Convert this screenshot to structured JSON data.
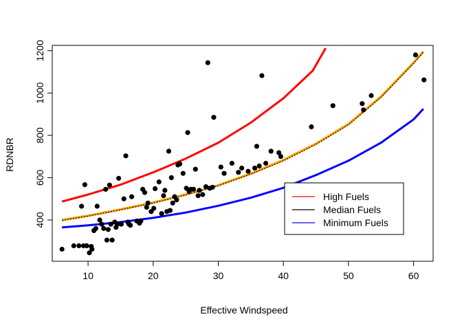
{
  "chart_data": {
    "type": "scatter",
    "xlabel": "Effective Windspeed",
    "ylabel": "RDNBR",
    "xlim": [
      4.5,
      63
    ],
    "ylim": [
      205,
      1225
    ],
    "x_ticks": [
      10,
      20,
      30,
      40,
      50,
      60
    ],
    "y_ticks": [
      400,
      600,
      800,
      1000,
      1200
    ],
    "grid": false,
    "legend_position": "bottom-right",
    "points": [
      [
        6,
        262
      ],
      [
        7.8,
        278
      ],
      [
        8.6,
        278
      ],
      [
        9,
        465
      ],
      [
        9.3,
        278
      ],
      [
        9.5,
        567
      ],
      [
        9.8,
        278
      ],
      [
        10.2,
        245
      ],
      [
        10.5,
        275
      ],
      [
        10.6,
        262
      ],
      [
        10.9,
        350
      ],
      [
        11.2,
        360
      ],
      [
        11.4,
        465
      ],
      [
        11.8,
        400
      ],
      [
        12.1,
        380
      ],
      [
        12.4,
        360
      ],
      [
        12.7,
        545
      ],
      [
        12.9,
        305
      ],
      [
        13.1,
        355
      ],
      [
        13.3,
        565
      ],
      [
        13.5,
        380
      ],
      [
        13.7,
        305
      ],
      [
        14.1,
        390
      ],
      [
        14.3,
        365
      ],
      [
        14.5,
        380
      ],
      [
        14.7,
        597
      ],
      [
        15.1,
        380
      ],
      [
        15.5,
        500
      ],
      [
        15.8,
        703
      ],
      [
        16.1,
        390
      ],
      [
        16.3,
        380
      ],
      [
        16.5,
        375
      ],
      [
        16.7,
        510
      ],
      [
        17.5,
        395
      ],
      [
        17.9,
        385
      ],
      [
        18.1,
        395
      ],
      [
        18.4,
        545
      ],
      [
        18.7,
        530
      ],
      [
        19,
        460
      ],
      [
        19.2,
        480
      ],
      [
        19.7,
        440
      ],
      [
        20.1,
        455
      ],
      [
        20.3,
        548
      ],
      [
        20.9,
        580
      ],
      [
        21.3,
        430
      ],
      [
        21.6,
        515
      ],
      [
        21.8,
        540
      ],
      [
        22.1,
        440
      ],
      [
        22.4,
        725
      ],
      [
        22.6,
        445
      ],
      [
        22.8,
        600
      ],
      [
        23,
        480
      ],
      [
        23.3,
        510
      ],
      [
        23.6,
        495
      ],
      [
        23.8,
        660
      ],
      [
        24.1,
        665
      ],
      [
        24.6,
        620
      ],
      [
        25.1,
        550
      ],
      [
        25.3,
        813
      ],
      [
        25.5,
        535
      ],
      [
        25.8,
        545
      ],
      [
        26.2,
        545
      ],
      [
        26.5,
        640
      ],
      [
        26.9,
        515
      ],
      [
        27.1,
        540
      ],
      [
        27.6,
        520
      ],
      [
        28.1,
        557
      ],
      [
        28.4,
        1143
      ],
      [
        28.7,
        550
      ],
      [
        29.1,
        555
      ],
      [
        29.3,
        885
      ],
      [
        30.4,
        650
      ],
      [
        30.9,
        620
      ],
      [
        32.1,
        668
      ],
      [
        33.1,
        625
      ],
      [
        33.6,
        645
      ],
      [
        34.6,
        630
      ],
      [
        35.6,
        645
      ],
      [
        35.9,
        748
      ],
      [
        36.3,
        655
      ],
      [
        36.7,
        1082
      ],
      [
        37.3,
        668
      ],
      [
        38.1,
        725
      ],
      [
        39.3,
        718
      ],
      [
        39.6,
        700
      ],
      [
        44.3,
        840
      ],
      [
        47.6,
        940
      ],
      [
        52.1,
        950
      ],
      [
        52.3,
        920
      ],
      [
        53.5,
        988
      ],
      [
        60.3,
        1180
      ],
      [
        61.6,
        1062
      ]
    ],
    "series": [
      {
        "name": "High Fuels",
        "color": "#ff0000",
        "x": [
          6,
          10,
          15,
          20,
          25,
          30,
          35,
          40,
          44.5,
          46.5
        ],
        "y": [
          487,
          520,
          567,
          625,
          690,
          765,
          860,
          975,
          1105,
          1212
        ]
      },
      {
        "name": "Median Fuels",
        "color": "#000000",
        "x": [
          6,
          10,
          15,
          20,
          25,
          30,
          35,
          40,
          45,
          50,
          55,
          60,
          61.5
        ],
        "y": [
          398,
          418,
          448,
          480,
          518,
          562,
          617,
          680,
          757,
          850,
          980,
          1140,
          1193
        ]
      },
      {
        "name": "Minimum Fuels",
        "color": "#0000ff",
        "x": [
          6,
          10,
          15,
          20,
          25,
          30,
          35,
          40,
          45,
          50,
          55,
          60,
          61.5
        ],
        "y": [
          365,
          375,
          390,
          410,
          435,
          467,
          505,
          552,
          612,
          680,
          765,
          875,
          925
        ]
      }
    ],
    "extra_line": {
      "color": "#ffa500",
      "x": [
        6,
        10,
        15,
        20,
        25,
        30,
        35,
        40,
        45,
        50,
        55,
        60,
        61.5
      ],
      "y": [
        400,
        420,
        450,
        482,
        520,
        564,
        619,
        683,
        760,
        853,
        983,
        1143,
        1196
      ]
    },
    "legend": [
      "High Fuels",
      "Median Fuels",
      "Minimum Fuels"
    ]
  }
}
